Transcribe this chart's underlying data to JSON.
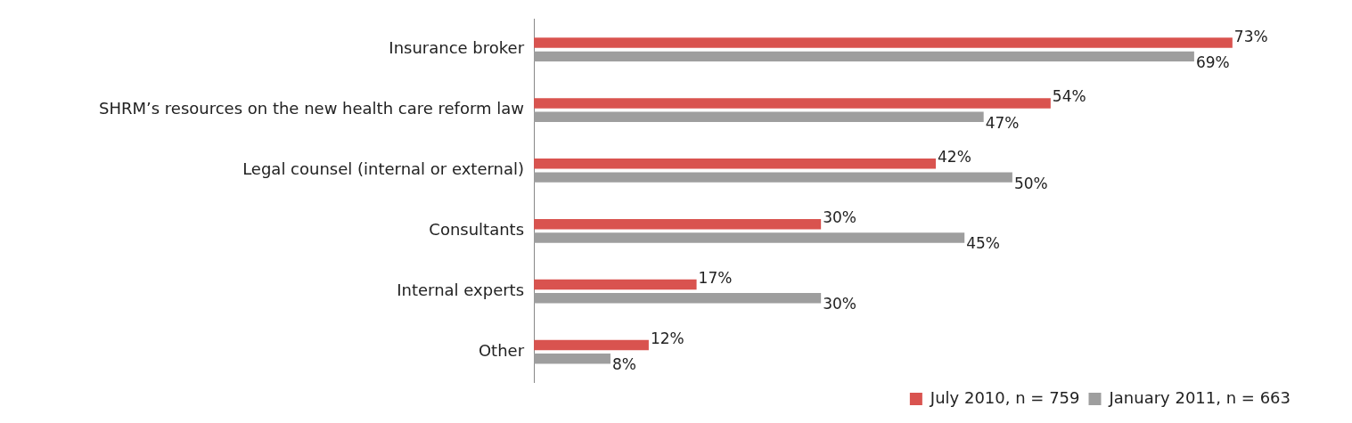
{
  "chart_data": {
    "type": "bar",
    "orientation": "horizontal",
    "categories": [
      "Insurance broker",
      "SHRM’s resources on the new health care reform law",
      "Legal counsel (internal or external)",
      "Consultants",
      "Internal experts",
      "Other"
    ],
    "series": [
      {
        "name": "July 2010, n = 759",
        "color": "#d9534f",
        "values": [
          73,
          54,
          42,
          30,
          17,
          12
        ],
        "value_labels": [
          "73%",
          "54%",
          "42%",
          "30%",
          "17%",
          "12%"
        ]
      },
      {
        "name": "January 2011, n = 663",
        "color": "#9e9e9e",
        "values": [
          69,
          47,
          50,
          45,
          30,
          8
        ],
        "value_labels": [
          "69%",
          "47%",
          "50%",
          "45%",
          "30%",
          "8%"
        ]
      }
    ],
    "legend": "bottom right"
  }
}
